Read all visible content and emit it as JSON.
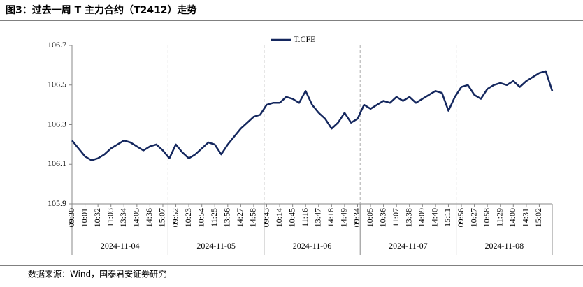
{
  "chart_data": {
    "type": "line",
    "title": "图3：过去一周 T 主力合约（T2412）走势",
    "source": "数据来源：Wind，国泰君安证券研究",
    "categories": [
      "09:30",
      null,
      "10:01",
      null,
      "10:32",
      null,
      "11:03",
      null,
      "13:34",
      null,
      "14:05",
      null,
      "14:36",
      null,
      "15:07",
      null,
      "09:52",
      null,
      "10:23",
      null,
      "10:54",
      null,
      "11:25",
      null,
      "13:56",
      null,
      "14:27",
      null,
      "14:58",
      null,
      "09:43",
      null,
      "10:14",
      null,
      "10:45",
      null,
      "11:16",
      null,
      "13:47",
      null,
      "14:18",
      null,
      "14:49",
      null,
      "09:34",
      null,
      "10:05",
      null,
      "10:36",
      null,
      "11:07",
      null,
      "13:38",
      null,
      "14:09",
      null,
      "14:40",
      null,
      "15:11",
      null,
      "09:56",
      null,
      "10:27",
      null,
      "10:58",
      null,
      "11:29",
      null,
      "14:00",
      null,
      "14:31",
      null,
      "15:02",
      null,
      null
    ],
    "category_groups": [
      "2024-11-04",
      "2024-11-05",
      "2024-11-06",
      "2024-11-07",
      "2024-11-08"
    ],
    "series": [
      {
        "name": "T.CFE",
        "color": "#14275e",
        "values": [
          106.22,
          106.18,
          106.14,
          106.12,
          106.13,
          106.15,
          106.18,
          106.2,
          106.22,
          106.21,
          106.19,
          106.17,
          106.19,
          106.2,
          106.17,
          106.13,
          106.2,
          106.16,
          106.13,
          106.15,
          106.18,
          106.21,
          106.2,
          106.15,
          106.2,
          106.24,
          106.28,
          106.31,
          106.34,
          106.35,
          106.4,
          106.41,
          106.41,
          106.44,
          106.43,
          106.41,
          106.47,
          106.4,
          106.36,
          106.33,
          106.28,
          106.31,
          106.36,
          106.31,
          106.33,
          106.4,
          106.38,
          106.4,
          106.42,
          106.41,
          106.44,
          106.42,
          106.44,
          106.41,
          106.43,
          106.45,
          106.47,
          106.46,
          106.37,
          106.44,
          106.49,
          106.5,
          106.45,
          106.43,
          106.48,
          106.5,
          106.51,
          106.5,
          106.52,
          106.49,
          106.52,
          106.54,
          106.56,
          106.57,
          106.47
        ]
      }
    ],
    "ylim": [
      105.9,
      106.7
    ],
    "yticks": [
      105.9,
      106.1,
      106.3,
      106.5,
      106.7
    ],
    "legend": "top"
  }
}
